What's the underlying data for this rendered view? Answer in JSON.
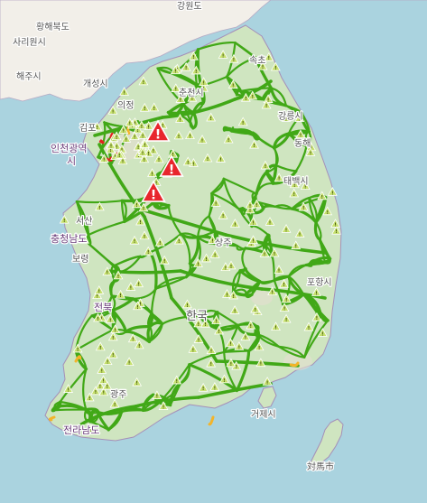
{
  "map": {
    "labels": {
      "hwanghae": "황해북도",
      "gangwon_n": "강원도",
      "sariwon": "사리원시",
      "haeju": "해주시",
      "gaeseong": "개성시",
      "gimpo": "김포",
      "incheon": "인천광역",
      "incheon2": "시",
      "uijeongbu": "의정",
      "chuncheon": "춘천시",
      "gangneung": "강릉시",
      "sokcho": "속초",
      "donghae": "동해",
      "taebaek": "태백시",
      "seosan": "서산",
      "chungcheong": "충청남도",
      "boryeong": "보령",
      "jeonbuk": "전북",
      "sangju": "상주",
      "pohang": "포항시",
      "korea": "한국",
      "gwangju": "광주",
      "geoje": "거제시",
      "jeonnam": "전라남도",
      "tsushima": "対馬市"
    },
    "colors": {
      "sea": "#aad3df",
      "land": "#f2efe9",
      "forest": "#cfe5c0",
      "road_free": "#41a817",
      "road_slow": "#f3b42a",
      "road_jam": "#e0241d",
      "incident": "#e8262d",
      "warning": "#c5e06e"
    },
    "markers": {
      "warning_icon": "warning-triangle-icon",
      "incident_icon": "incident-triangle-icon"
    }
  }
}
